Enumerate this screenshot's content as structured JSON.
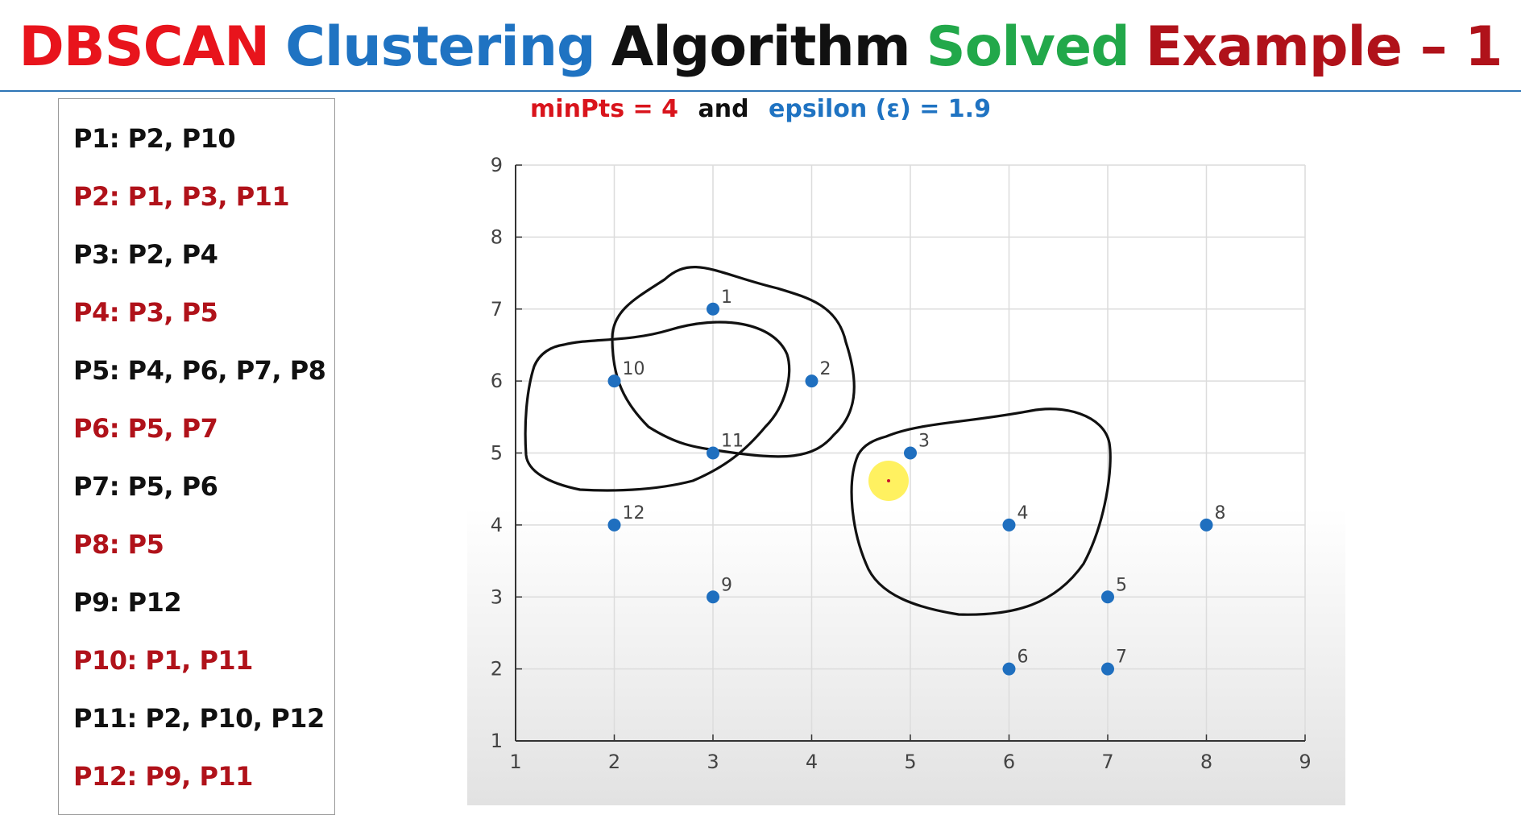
{
  "slide": {
    "title_parts": [
      {
        "text": "DBSCAN",
        "color": "#e8141c"
      },
      {
        "text": "Clustering",
        "color": "#1f73c2"
      },
      {
        "text": "Algorithm",
        "color": "#111111"
      },
      {
        "text": "Solved",
        "color": "#22a84a"
      },
      {
        "text": "Example – 1",
        "color": "#b0121a"
      }
    ],
    "params": {
      "minpts": "minPts = 4",
      "and": "and",
      "epsilon": "epsilon (ε)  = 1.9",
      "colors": {
        "minpts": "#d9141c",
        "and": "#111111",
        "epsilon": "#1f73c2"
      }
    }
  },
  "neighbors": [
    {
      "text": "P1: P2, P10",
      "color": "#111111"
    },
    {
      "text": "P2: P1, P3, P11",
      "color": "#b0121a"
    },
    {
      "text": "P3: P2, P4",
      "color": "#111111"
    },
    {
      "text": "P4: P3, P5",
      "color": "#b0121a"
    },
    {
      "text": "P5: P4, P6, P7, P8",
      "color": "#111111"
    },
    {
      "text": "P6: P5, P7",
      "color": "#b0121a"
    },
    {
      "text": "P7: P5, P6",
      "color": "#111111"
    },
    {
      "text": "P8: P5",
      "color": "#b0121a"
    },
    {
      "text": "P9: P12",
      "color": "#111111"
    },
    {
      "text": "P10: P1, P11",
      "color": "#b0121a"
    },
    {
      "text": "P11: P2, P10, P12",
      "color": "#111111"
    },
    {
      "text": "P12: P9, P11",
      "color": "#b0121a"
    }
  ],
  "chart_data": {
    "type": "scatter",
    "xlim": [
      1,
      9
    ],
    "ylim": [
      1,
      9
    ],
    "xticks": [
      1,
      2,
      3,
      4,
      5,
      6,
      7,
      8,
      9
    ],
    "yticks": [
      1,
      2,
      3,
      4,
      5,
      6,
      7,
      8,
      9
    ],
    "grid": true,
    "point_color": "#1f6fbf",
    "points": [
      {
        "label": "1",
        "x": 3,
        "y": 7
      },
      {
        "label": "2",
        "x": 4,
        "y": 6
      },
      {
        "label": "3",
        "x": 5,
        "y": 5
      },
      {
        "label": "4",
        "x": 6,
        "y": 4
      },
      {
        "label": "5",
        "x": 7,
        "y": 3
      },
      {
        "label": "6",
        "x": 6,
        "y": 2
      },
      {
        "label": "7",
        "x": 7,
        "y": 2
      },
      {
        "label": "8",
        "x": 8,
        "y": 4
      },
      {
        "label": "9",
        "x": 3,
        "y": 3
      },
      {
        "label": "10",
        "x": 2,
        "y": 6
      },
      {
        "label": "11",
        "x": 3,
        "y": 5
      },
      {
        "label": "12",
        "x": 2,
        "y": 4
      }
    ]
  }
}
